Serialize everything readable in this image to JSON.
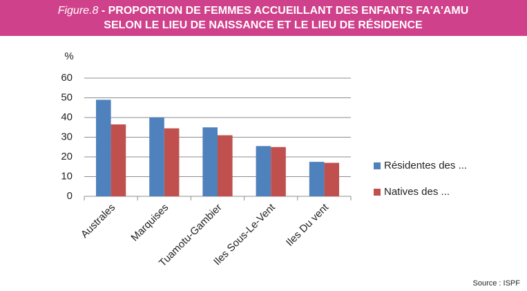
{
  "chart_data": {
    "type": "bar",
    "figure_label": "Figure.8",
    "title_lines": [
      "- PROPORTION DE FEMMES ACCUEILLANT DES ENFANTS FA'A'AMU",
      "SELON LE LIEU DE NAISSANCE ET LE LIEU DE RÉSIDENCE"
    ],
    "y_label": "%",
    "categories": [
      "Australes",
      "Marquises",
      "Tuamotu-Gambier",
      "Iles Sous-Le-Vent",
      "Iles Du vent"
    ],
    "series": [
      {
        "name": "Résidentes des ...",
        "color": "#4f81bd",
        "values": [
          49,
          40,
          35,
          25.5,
          17.5
        ]
      },
      {
        "name": "Natives des ...",
        "color": "#c0504d",
        "values": [
          36.5,
          34.5,
          31,
          25,
          17
        ]
      }
    ],
    "ylim": [
      0,
      60
    ],
    "yticks": [
      0,
      10,
      20,
      30,
      40,
      50,
      60
    ],
    "grid": true,
    "legend": "right",
    "source": "Source : ISPF"
  }
}
